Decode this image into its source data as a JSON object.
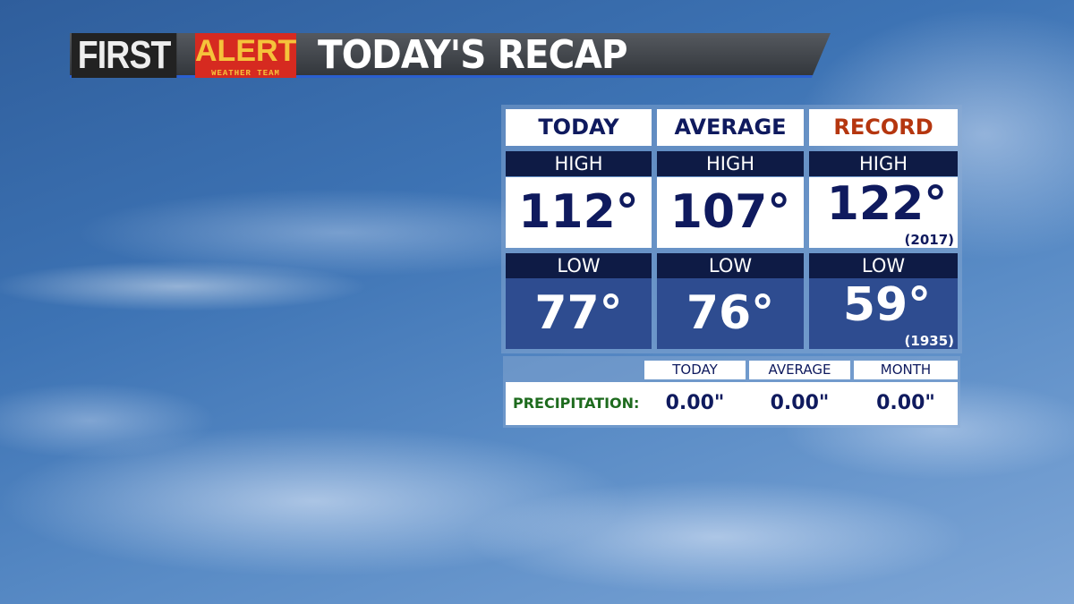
{
  "banner": {
    "first": "FIRST",
    "alert": "ALERT",
    "team": "WEATHER TEAM",
    "title": "TODAY'S RECAP"
  },
  "colors": {
    "navy": "#0f1a5e",
    "record": "#b5360f",
    "low_bg": "#2e4c90",
    "label_bg": "#0e1b45",
    "precip_label": "#1e6b1e"
  },
  "columns": [
    {
      "title": "TODAY",
      "high_label": "HIGH",
      "high": "112°",
      "low_label": "LOW",
      "low": "77°"
    },
    {
      "title": "AVERAGE",
      "high_label": "HIGH",
      "high": "107°",
      "low_label": "LOW",
      "low": "76°"
    },
    {
      "title": "RECORD",
      "high_label": "HIGH",
      "high": "122°",
      "high_year": "(2017)",
      "low_label": "LOW",
      "low": "59°",
      "low_year": "(1935)"
    }
  ],
  "precip": {
    "label": "PRECIPITATION:",
    "headers": [
      "TODAY",
      "AVERAGE",
      "MONTH"
    ],
    "values": [
      "0.00\"",
      "0.00\"",
      "0.00\""
    ]
  }
}
